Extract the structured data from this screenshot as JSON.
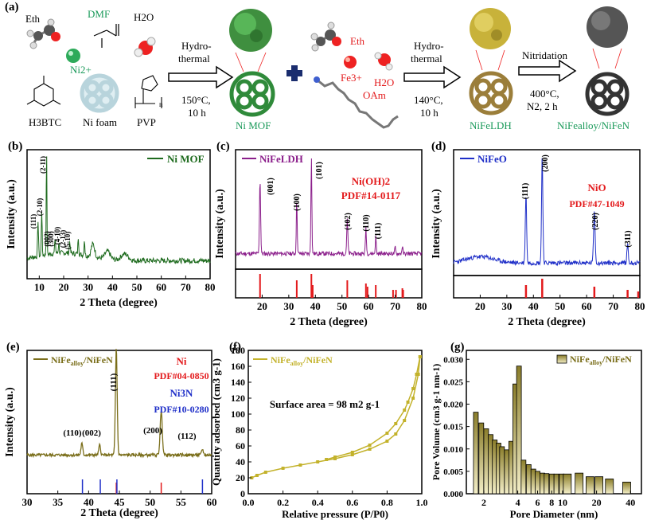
{
  "colors": {
    "nimof": "#1e6b1e",
    "ldh": "#8b1f8b",
    "nifeo": "#1f2fc8",
    "alloy": "#7a6e1a",
    "bet": "#c3b22b",
    "ref": "#e31a1c",
    "ni3n": "#1f2fc8"
  },
  "panel_a": {
    "label": "(a)",
    "eth": "Eth",
    "dmf": "DMF",
    "h2o": "H2O",
    "ni2": "Ni2+",
    "h3btc": "H3BTC",
    "nifoam": "Ni foam",
    "pvp": "PVP",
    "arrow1_top": "Hydro-",
    "arrow1_mid": "thermal",
    "arrow1_b1": "150°C,",
    "arrow1_b2": "10 h",
    "nimof": "Ni MOF",
    "eth2": "Eth",
    "fe3": "Fe3+",
    "h2o2": "H2O",
    "oam": "OAm",
    "arrow2_top": "Hydro-",
    "arrow2_mid": "thermal",
    "arrow2_b1": "140°C,",
    "arrow2_b2": "10 h",
    "nifeldh": "NiFeLDH",
    "arrow3_top": "Nitridation",
    "arrow3_b1": "400°C,",
    "arrow3_b2": "N2, 2 h",
    "product": "NiFealloy/NiFeN",
    "pvp_n": "n"
  },
  "chart_data": [
    {
      "panel": "(b)",
      "type": "line",
      "title": "",
      "legend": "Ni MOF",
      "xlabel": "2 Theta (degree)",
      "ylabel": "Intensity (a.u.)",
      "xlim": [
        5,
        80
      ],
      "xticks": [
        10,
        20,
        30,
        40,
        50,
        60,
        70,
        80
      ],
      "peaks": [
        {
          "x": 9.5,
          "label": "(111)"
        },
        {
          "x": 11.0,
          "label": "(2-10)"
        },
        {
          "x": 13.0,
          "label": "(2-11)"
        },
        {
          "x": 16.5,
          "label": "(002)"
        },
        {
          "x": 18.0,
          "label": "(300)"
        },
        {
          "x": 22.5,
          "label": "(4-10)"
        },
        {
          "x": 26.0,
          "label": "(2-13)"
        },
        {
          "x": 28.5,
          "label": "(5-10)"
        }
      ]
    },
    {
      "panel": "(c)",
      "type": "line",
      "legend": "NiFeLDH",
      "xlabel": "2 Theta (degree)",
      "ylabel": "Intensity (a.u.)",
      "xlim": [
        10,
        80
      ],
      "xticks": [
        20,
        30,
        40,
        50,
        60,
        70,
        80
      ],
      "ref": "Ni(OH)2",
      "pdf": "PDF#14-0117",
      "peaks": [
        {
          "x": 19.2,
          "label": "(001)"
        },
        {
          "x": 33.0,
          "label": "(100)"
        },
        {
          "x": 38.5,
          "label": "(101)"
        },
        {
          "x": 52.0,
          "label": "(102)"
        },
        {
          "x": 59.0,
          "label": "(110)"
        },
        {
          "x": 62.7,
          "label": "(111)"
        }
      ],
      "ref_lines": [
        19.2,
        33.0,
        38.5,
        39.0,
        52.0,
        59.0,
        59.6,
        62.7,
        69.2,
        70.3,
        72.7,
        73.0
      ]
    },
    {
      "panel": "(d)",
      "type": "line",
      "legend": "NiFeO",
      "xlabel": "2 Theta (degree)",
      "ylabel": "Intensity (a.u.)",
      "xlim": [
        10,
        80
      ],
      "xticks": [
        20,
        30,
        40,
        50,
        60,
        70,
        80
      ],
      "ref": "NiO",
      "pdf": "PDF#47-1049",
      "peaks": [
        {
          "x": 37.2,
          "label": "(111)"
        },
        {
          "x": 43.3,
          "label": "(200)"
        },
        {
          "x": 62.9,
          "label": "(220)"
        },
        {
          "x": 75.4,
          "label": "(311)"
        }
      ],
      "ref_lines": [
        37.2,
        43.3,
        62.9,
        75.4,
        79.4
      ]
    },
    {
      "panel": "(e)",
      "type": "line",
      "legend": "NiFealloy/NiFeN",
      "xlabel": "2 Theta (degree)",
      "ylabel": "Intensity (a.u.)",
      "xlim": [
        30,
        60
      ],
      "xticks": [
        30,
        35,
        40,
        45,
        50,
        55,
        60
      ],
      "ref1": "Ni",
      "pdf1": "PDF#04-0850",
      "ref2": "Ni3N",
      "pdf2": "PDF#10-0280",
      "peaks": [
        {
          "x": 38.9,
          "label": "(110)"
        },
        {
          "x": 41.8,
          "label": "(002)"
        },
        {
          "x": 44.5,
          "label": "(111)"
        },
        {
          "x": 51.8,
          "label": "(200)"
        },
        {
          "x": 58.5,
          "label": "(112)"
        }
      ],
      "ref_red": [
        44.5,
        51.8
      ],
      "ref_blue": [
        39.0,
        41.9,
        44.6,
        58.5
      ]
    },
    {
      "panel": "(f)",
      "type": "line",
      "legend": "NiFealloy/NiFeN",
      "xlabel": "Relative pressure (P/P0)",
      "ylabel": "Quantity adsorbed (cm3 g-1)",
      "xlim": [
        0,
        1
      ],
      "ylim": [
        0,
        180
      ],
      "xticks": [
        0.0,
        0.2,
        0.4,
        0.6,
        0.8,
        1.0
      ],
      "yticks": [
        0,
        20,
        40,
        60,
        80,
        100,
        120,
        140,
        160,
        180
      ],
      "annotation": "Surface area = 98 m2 g-1",
      "adsorption": [
        [
          0.02,
          20
        ],
        [
          0.05,
          23
        ],
        [
          0.1,
          27
        ],
        [
          0.2,
          32
        ],
        [
          0.3,
          36
        ],
        [
          0.4,
          40
        ],
        [
          0.5,
          44
        ],
        [
          0.6,
          49
        ],
        [
          0.7,
          56
        ],
        [
          0.8,
          66
        ],
        [
          0.85,
          75
        ],
        [
          0.9,
          92
        ],
        [
          0.95,
          120
        ],
        [
          0.98,
          150
        ],
        [
          0.99,
          172
        ]
      ],
      "desorption": [
        [
          0.99,
          172
        ],
        [
          0.97,
          150
        ],
        [
          0.95,
          132
        ],
        [
          0.92,
          115
        ],
        [
          0.9,
          105
        ],
        [
          0.85,
          88
        ],
        [
          0.8,
          76
        ],
        [
          0.7,
          61
        ],
        [
          0.6,
          52
        ],
        [
          0.5,
          46
        ],
        [
          0.45,
          43
        ]
      ]
    },
    {
      "panel": "(g)",
      "type": "bar",
      "legend": "NiFealloy/NiFeN",
      "xlabel": "Pore Diameter (nm)",
      "ylabel": "Pore Volume (cm3 g-1 nm-1)",
      "ylim": [
        0,
        0.032
      ],
      "yticks": [
        0.0,
        0.005,
        0.01,
        0.015,
        0.02,
        0.025,
        0.03
      ],
      "xtick_labels": [
        "2",
        "4",
        "6",
        "8",
        "10",
        "20",
        "40"
      ],
      "xticks": [
        2,
        4,
        6,
        8,
        10,
        20,
        40
      ],
      "bars": [
        [
          1.7,
          0.0182
        ],
        [
          1.9,
          0.0158
        ],
        [
          2.1,
          0.0145
        ],
        [
          2.3,
          0.0132
        ],
        [
          2.5,
          0.012
        ],
        [
          2.7,
          0.0113
        ],
        [
          2.9,
          0.0105
        ],
        [
          3.2,
          0.0098
        ],
        [
          3.5,
          0.0117
        ],
        [
          3.8,
          0.0245
        ],
        [
          4.1,
          0.0285
        ],
        [
          4.5,
          0.0075
        ],
        [
          5.0,
          0.0065
        ],
        [
          5.5,
          0.0055
        ],
        [
          6.0,
          0.005
        ],
        [
          6.6,
          0.0046
        ],
        [
          7.2,
          0.0045
        ],
        [
          8.0,
          0.0044
        ],
        [
          8.8,
          0.0044
        ],
        [
          9.8,
          0.0044
        ],
        [
          11.0,
          0.0044
        ],
        [
          14.0,
          0.0046
        ],
        [
          17.5,
          0.0038
        ],
        [
          21.0,
          0.0038
        ],
        [
          26.0,
          0.0033
        ],
        [
          37.0,
          0.0026
        ]
      ]
    }
  ]
}
